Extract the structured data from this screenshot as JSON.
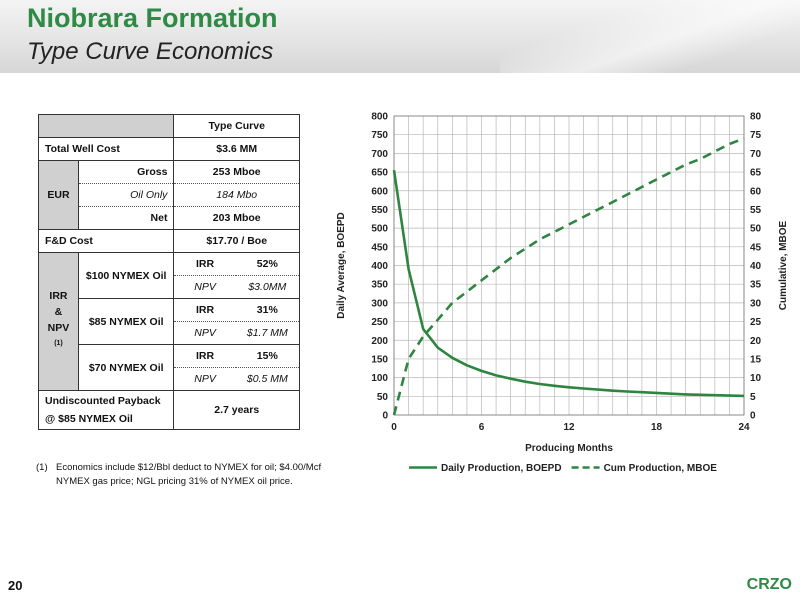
{
  "header": {
    "title": "Niobrara Formation",
    "subtitle": "Type Curve Economics"
  },
  "table": {
    "col_header": "Type Curve",
    "total_well_cost": {
      "label": "Total Well Cost",
      "value": "$3.6 MM"
    },
    "eur": {
      "label": "EUR",
      "gross_label": "Gross",
      "gross_value": "253 Mboe",
      "oil_label": "Oil Only",
      "oil_value": "184 Mbo",
      "net_label": "Net",
      "net_value": "203 Mboe"
    },
    "fd_cost": {
      "label": "F&D Cost",
      "value": "$17.70 / Boe"
    },
    "irr_npv": {
      "label_irr": "IRR",
      "label_amp": "&",
      "label_npv": "NPV",
      "label_sup": "(1)",
      "irr_label": "IRR",
      "npv_label": "NPV",
      "cases": [
        {
          "name": "$100 NYMEX Oil",
          "irr": "52%",
          "npv": "$3.0MM"
        },
        {
          "name": "$85 NYMEX Oil",
          "irr": "31%",
          "npv": "$1.7 MM"
        },
        {
          "name": "$70 NYMEX Oil",
          "irr": "15%",
          "npv": "$0.5 MM"
        }
      ]
    },
    "payback": {
      "label_line1": "Undiscounted Payback",
      "label_line2": "@ $85 NYMEX Oil",
      "value": "2.7 years"
    }
  },
  "footnote": {
    "num": "(1)",
    "text": "Economics include $12/Bbl deduct to NYMEX for oil; $4.00/Mcf NYMEX gas price; NGL pricing 31% of NYMEX oil price."
  },
  "footer": {
    "page": "20",
    "logo": "CRZO"
  },
  "chart_data": {
    "type": "line",
    "xlabel": "Producing Months",
    "ylabel": "Daily Average, BOEPD",
    "y2label": "Cumulative, MBOE",
    "xlim": [
      0,
      24
    ],
    "ylim": [
      0,
      800
    ],
    "y2lim": [
      0,
      80
    ],
    "xticks": [
      0,
      6,
      12,
      18,
      24
    ],
    "yticks": [
      0,
      50,
      100,
      150,
      200,
      250,
      300,
      350,
      400,
      450,
      500,
      550,
      600,
      650,
      700,
      750,
      800
    ],
    "y2ticks": [
      0,
      5,
      10,
      15,
      20,
      25,
      30,
      35,
      40,
      45,
      50,
      55,
      60,
      65,
      70,
      75,
      80
    ],
    "grid": true,
    "legend_position": "bottom",
    "colors": {
      "series": "#2e8540",
      "grid": "#b8b8b8"
    },
    "series": [
      {
        "name": "Daily Production, BOEPD",
        "axis": "left",
        "style": "solid",
        "x": [
          0,
          1,
          2,
          3,
          4,
          5,
          6,
          7,
          8,
          9,
          10,
          11,
          12,
          13,
          14,
          15,
          16,
          17,
          18,
          19,
          20,
          21,
          22,
          23,
          24
        ],
        "values": [
          655,
          390,
          230,
          180,
          153,
          133,
          118,
          106,
          97,
          89,
          83,
          78,
          74,
          71,
          68,
          65,
          63,
          61,
          59,
          57,
          55,
          54,
          53,
          52,
          51
        ]
      },
      {
        "name": "Cum Production, MBOE",
        "axis": "right",
        "style": "dashed",
        "x": [
          0,
          1,
          2,
          3,
          4,
          5,
          6,
          7,
          8,
          9,
          10,
          11,
          12,
          13,
          14,
          15,
          16,
          17,
          18,
          19,
          20,
          21,
          22,
          23,
          24
        ],
        "values": [
          0,
          15,
          21,
          25.5,
          30,
          33,
          36,
          39,
          42,
          44.5,
          47,
          49,
          51,
          53,
          55,
          57,
          59,
          61,
          63,
          65,
          67,
          68.5,
          70.5,
          72.5,
          74
        ]
      }
    ]
  }
}
